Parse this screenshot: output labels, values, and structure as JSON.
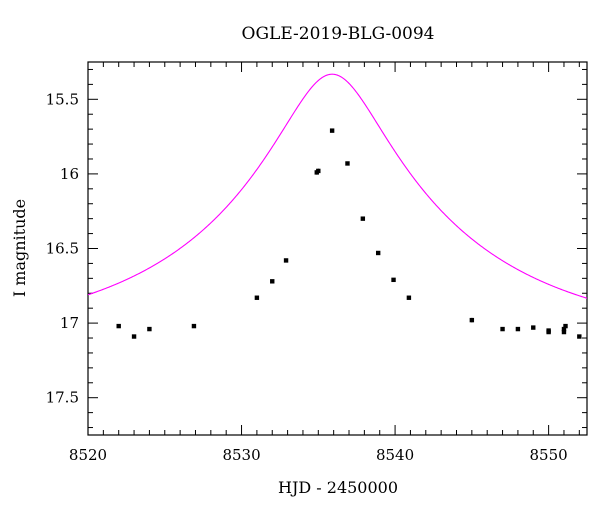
{
  "chart_data": {
    "type": "scatter",
    "title": "OGLE-2019-BLG-0094",
    "xlabel": "HJD - 2450000",
    "ylabel": "I magnitude",
    "xlim": [
      8520,
      8552.5
    ],
    "ylim": [
      17.75,
      15.25
    ],
    "y_inverted": true,
    "xticks": [
      8520,
      8530,
      8540,
      8550
    ],
    "yticks": [
      15.5,
      16,
      16.5,
      17,
      17.5
    ],
    "xtick_labels": [
      "8520",
      "8530",
      "8540",
      "8550"
    ],
    "ytick_labels": [
      "15.5",
      "16",
      "16.5",
      "17",
      "17.5"
    ],
    "grid": false,
    "legend": "none",
    "colors": {
      "points": "#000000",
      "model": "#ff00ff",
      "axes": "#000000"
    },
    "series": [
      {
        "kind": "points-with-errorbars",
        "x": [
          8522.0,
          8523.0,
          8524.0,
          8526.9,
          8531.0,
          8532.0,
          8532.9,
          8534.9,
          8535.0,
          8535.9,
          8536.9,
          8537.9,
          8538.9,
          8539.9,
          8540.9,
          8545.0,
          8547.0,
          8548.0,
          8549.0,
          8550.0,
          8550.0,
          8551.0,
          8551.0,
          8551.1,
          8552.0
        ],
        "y": [
          17.02,
          17.09,
          17.04,
          17.02,
          16.83,
          16.72,
          16.58,
          15.99,
          15.98,
          15.71,
          15.93,
          16.3,
          16.53,
          16.71,
          16.83,
          16.98,
          17.04,
          17.04,
          17.03,
          17.05,
          17.06,
          17.06,
          17.04,
          17.02,
          17.09
        ],
        "yerr": [
          0.01,
          0.01,
          0.01,
          0.01,
          0.01,
          0.01,
          0.01,
          0.015,
          0.015,
          0.01,
          0.01,
          0.01,
          0.01,
          0.01,
          0.01,
          0.015,
          0.01,
          0.01,
          0.01,
          0.01,
          0.01,
          0.01,
          0.01,
          0.01,
          0.01
        ]
      },
      {
        "kind": "model-curve",
        "model": "PSPL",
        "t0": 8535.9,
        "tE": 16.0,
        "u0": 0.195,
        "I_base": 17.122
      }
    ]
  }
}
